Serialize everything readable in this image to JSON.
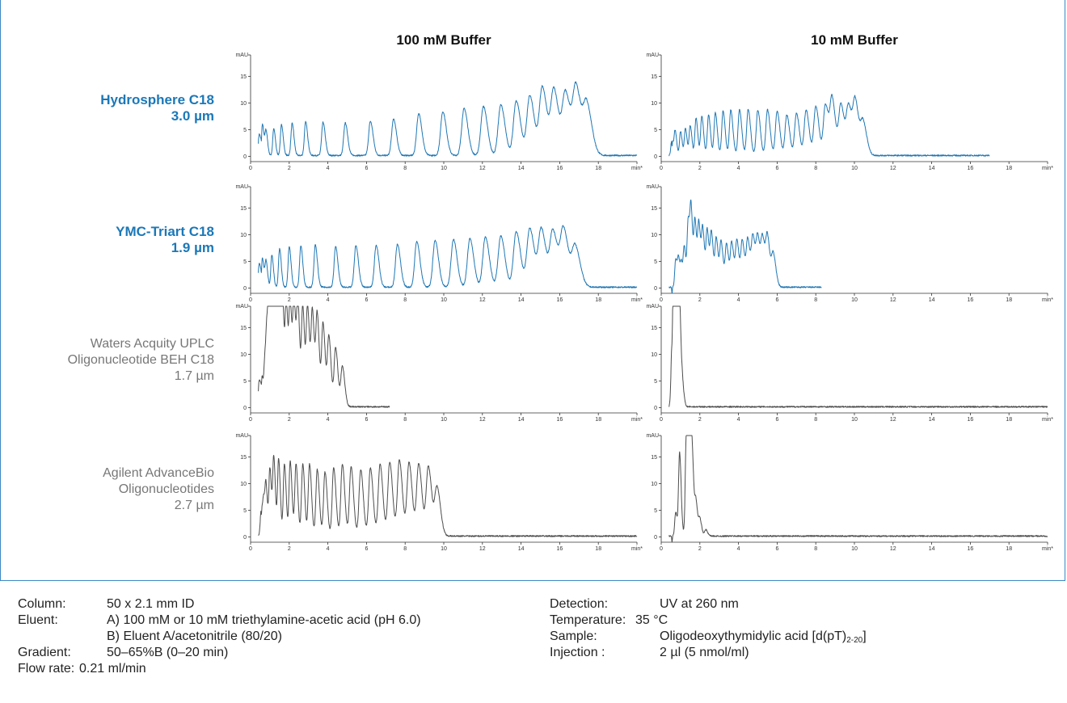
{
  "colors": {
    "blue": "#1f77b4",
    "gray": "#4d4d4d",
    "frame": "#3b88c3"
  },
  "chart_data": {
    "type": "line",
    "columns": [
      "100 mM Buffer",
      "10 mM Buffer"
    ],
    "xlabel": "min*",
    "ylabel": "mAU",
    "xlim": [
      0,
      20
    ],
    "ylim": [
      -1,
      19
    ],
    "xticks": [
      0,
      2,
      4,
      6,
      8,
      10,
      12,
      14,
      16,
      18
    ],
    "yticks": [
      0,
      5,
      10,
      15
    ],
    "rows": [
      {
        "label": [
          "Hydrosphere C18",
          "3.0 µm"
        ],
        "style": "blue",
        "panels": [
          {
            "end": 20,
            "peaks": [
              [
                0.45,
                4
              ],
              [
                0.62,
                5.5
              ],
              [
                0.8,
                4.5
              ],
              [
                1.2,
                5
              ],
              [
                1.6,
                5.8
              ],
              [
                2.15,
                6
              ],
              [
                2.85,
                6.3
              ],
              [
                3.75,
                6.2
              ],
              [
                4.9,
                6.1
              ],
              [
                6.2,
                6.4
              ],
              [
                7.4,
                6.8
              ],
              [
                8.7,
                7.8
              ],
              [
                9.95,
                8.2
              ],
              [
                11.05,
                8.8
              ],
              [
                12.05,
                9.2
              ],
              [
                12.95,
                9.5
              ],
              [
                13.75,
                10.2
              ],
              [
                14.45,
                11.2
              ],
              [
                15.1,
                12.8
              ],
              [
                15.7,
                12.2
              ],
              [
                16.3,
                11.6
              ],
              [
                16.85,
                12.5
              ],
              [
                17.4,
                9.2
              ]
            ]
          },
          {
            "end": 17,
            "peaks": [
              [
                0.55,
                3
              ],
              [
                0.72,
                4.5
              ],
              [
                1.0,
                4.5
              ],
              [
                1.25,
                5
              ],
              [
                1.5,
                5.5
              ],
              [
                1.8,
                7
              ],
              [
                2.1,
                7.3
              ],
              [
                2.45,
                7.6
              ],
              [
                2.8,
                8
              ],
              [
                3.2,
                8.3
              ],
              [
                3.6,
                8.5
              ],
              [
                4.05,
                8.6
              ],
              [
                4.5,
                8.7
              ],
              [
                5.0,
                8.5
              ],
              [
                5.5,
                8.6
              ],
              [
                6.0,
                8.3
              ],
              [
                6.5,
                7.6
              ],
              [
                7.0,
                7.9
              ],
              [
                7.5,
                8.5
              ],
              [
                8.0,
                9.2
              ],
              [
                8.5,
                9.5
              ],
              [
                8.85,
                10.2
              ],
              [
                9.3,
                9.5
              ],
              [
                9.7,
                9
              ],
              [
                10.05,
                9.6
              ],
              [
                10.45,
                6
              ]
            ]
          }
        ]
      },
      {
        "label": [
          "YMC-Triart C18",
          "1.9 µm"
        ],
        "style": "blue",
        "panels": [
          {
            "end": 20,
            "peaks": [
              [
                0.45,
                4.5
              ],
              [
                0.62,
                5
              ],
              [
                0.8,
                4.8
              ],
              [
                1.1,
                6
              ],
              [
                1.5,
                7.2
              ],
              [
                2.0,
                7.6
              ],
              [
                2.6,
                7.8
              ],
              [
                3.35,
                7.9
              ],
              [
                4.4,
                7.6
              ],
              [
                5.45,
                7.8
              ],
              [
                6.5,
                7.9
              ],
              [
                7.6,
                8.1
              ],
              [
                8.6,
                8.6
              ],
              [
                9.55,
                8.8
              ],
              [
                10.5,
                9
              ],
              [
                11.35,
                9.1
              ],
              [
                12.15,
                9.4
              ],
              [
                12.95,
                9.6
              ],
              [
                13.75,
                10.4
              ],
              [
                14.45,
                11
              ],
              [
                15.05,
                10.8
              ],
              [
                15.65,
                10.4
              ],
              [
                16.2,
                10.6
              ],
              [
                16.8,
                7.5
              ]
            ]
          },
          {
            "end": 8.3,
            "peaks": [
              [
                0.75,
                5.2
              ],
              [
                0.9,
                5
              ],
              [
                1.05,
                4
              ],
              [
                1.2,
                7
              ],
              [
                1.4,
                12.5
              ],
              [
                1.55,
                13
              ],
              [
                1.75,
                12
              ],
              [
                1.95,
                11.5
              ],
              [
                2.15,
                10.5
              ],
              [
                2.38,
                10.5
              ],
              [
                2.6,
                9.8
              ],
              [
                2.85,
                9
              ],
              [
                3.1,
                8.3
              ],
              [
                3.38,
                8
              ],
              [
                3.65,
                8.2
              ],
              [
                3.92,
                8.5
              ],
              [
                4.2,
                8.5
              ],
              [
                4.48,
                8.8
              ],
              [
                4.75,
                9.2
              ],
              [
                5.0,
                8.8
              ],
              [
                5.25,
                8.6
              ],
              [
                5.5,
                8.8
              ],
              [
                5.8,
                6
              ]
            ]
          }
        ]
      },
      {
        "label": [
          "Waters Acquity UPLC",
          "Oligonucleotide BEH C18",
          "1.7 µm"
        ],
        "style": "gray",
        "panels": [
          {
            "end": 7.2,
            "peaks": [
              [
                0.45,
                5
              ],
              [
                0.6,
                5
              ],
              [
                0.75,
                8.5
              ],
              [
                0.85,
                11
              ],
              [
                0.95,
                16
              ],
              [
                1.05,
                19
              ],
              [
                1.2,
                19
              ],
              [
                1.35,
                19
              ],
              [
                1.5,
                19
              ],
              [
                1.65,
                19
              ],
              [
                1.85,
                19
              ],
              [
                2.05,
                19
              ],
              [
                2.25,
                19
              ],
              [
                2.45,
                18.5
              ],
              [
                2.7,
                18.5
              ],
              [
                2.95,
                18.5
              ],
              [
                3.2,
                17.5
              ],
              [
                3.45,
                16.8
              ],
              [
                3.75,
                15.5
              ],
              [
                4.05,
                13
              ],
              [
                4.4,
                11
              ],
              [
                4.75,
                7.5
              ]
            ]
          },
          {
            "end": 20,
            "peaks": [
              [
                0.55,
                10
              ],
              [
                0.65,
                19
              ],
              [
                0.75,
                19
              ],
              [
                0.85,
                19
              ],
              [
                0.95,
                14
              ],
              [
                1.1,
                3.5
              ]
            ]
          }
        ]
      },
      {
        "label": [
          "Agilent AdvanceBio",
          "Oligonucleotides",
          "2.7 µm"
        ],
        "style": "gray",
        "panels": [
          {
            "end": 20,
            "peaks": [
              [
                0.55,
                5
              ],
              [
                0.68,
                6
              ],
              [
                0.8,
                8.5
              ],
              [
                1.0,
                12.5
              ],
              [
                1.2,
                14.5
              ],
              [
                1.45,
                14.3
              ],
              [
                1.75,
                13.5
              ],
              [
                2.05,
                14
              ],
              [
                2.35,
                13.5
              ],
              [
                2.7,
                13.5
              ],
              [
                3.05,
                13.5
              ],
              [
                3.45,
                12.5
              ],
              [
                3.85,
                12
              ],
              [
                4.3,
                12.8
              ],
              [
                4.75,
                13.5
              ],
              [
                5.2,
                13
              ],
              [
                5.7,
                12.5
              ],
              [
                6.2,
                12.8
              ],
              [
                6.7,
                13.5
              ],
              [
                7.2,
                13.8
              ],
              [
                7.7,
                14.2
              ],
              [
                8.2,
                13.8
              ],
              [
                8.7,
                13.5
              ],
              [
                9.2,
                13
              ],
              [
                9.65,
                9
              ]
            ]
          },
          {
            "end": 20,
            "peaks": [
              [
                0.75,
                4.5
              ],
              [
                0.95,
                15.5
              ],
              [
                1.3,
                19
              ],
              [
                1.45,
                19
              ],
              [
                1.6,
                14
              ],
              [
                1.8,
                6
              ],
              [
                2.0,
                3
              ],
              [
                2.3,
                1.2
              ]
            ]
          }
        ]
      }
    ]
  },
  "conditions": {
    "left": [
      {
        "key": "Column:",
        "value": "50 x 2.1 mm ID"
      },
      {
        "key": "Eluent:",
        "value": "A) 100 mM or 10 mM triethylamine-acetic acid (pH 6.0)"
      },
      {
        "key": "",
        "value": "B) Eluent A/acetonitrile (80/20)"
      },
      {
        "key": "Gradient:",
        "value": "50–65%B (0–20 min)"
      },
      {
        "key": "Flow rate:",
        "value": "0.21 ml/min"
      }
    ],
    "right": [
      {
        "key": "Detection:",
        "value": "UV at 260 nm"
      },
      {
        "key": "Temperature:",
        "value": "35 °C"
      },
      {
        "key": "Sample:",
        "value": "Oligodeoxythymidylic acid [d(pT)",
        "sub": "2-20",
        "tail": "]"
      },
      {
        "key": "Injection :",
        "value": "2 µl (5 nmol/ml)"
      }
    ]
  }
}
